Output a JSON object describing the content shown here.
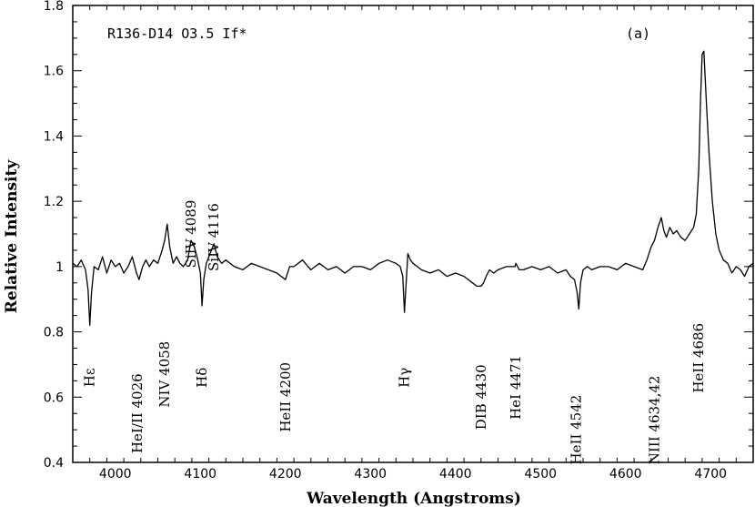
{
  "chart_data": {
    "type": "line",
    "title": "R136-D14 O3.5 If*",
    "panel_label": "(a)",
    "xlabel": "Wavelength (Angstroms)",
    "ylabel": "Relative Intensity",
    "xlim": [
      3950,
      4750
    ],
    "ylim": [
      0.4,
      1.8
    ],
    "x_ticks": [
      4000,
      4100,
      4200,
      4300,
      4400,
      4500,
      4600,
      4700
    ],
    "y_ticks": [
      0.4,
      0.6,
      0.8,
      1,
      1.2,
      1.4,
      1.6,
      1.8
    ],
    "y_tick_labels": [
      "0.4",
      "0.6",
      "0.8",
      "1",
      "1.2",
      "1.4",
      "1.6",
      "1.8"
    ],
    "grid": false,
    "series": [
      {
        "x": [
          3950,
          3955,
          3960,
          3965,
          3968,
          3970,
          3972,
          3975,
          3980,
          3985,
          3990,
          3995,
          4000,
          4005,
          4010,
          4015,
          4020,
          4025,
          4028,
          4032,
          4036,
          4040,
          4045,
          4050,
          4055,
          4058,
          4061,
          4064,
          4068,
          4072,
          4076,
          4080,
          4085,
          4089,
          4093,
          4097,
          4100,
          4102,
          4104,
          4107,
          4110,
          4113,
          4116,
          4120,
          4125,
          4130,
          4140,
          4150,
          4160,
          4170,
          4180,
          4190,
          4200,
          4205,
          4210,
          4220,
          4230,
          4240,
          4250,
          4260,
          4270,
          4280,
          4290,
          4300,
          4310,
          4320,
          4330,
          4335,
          4338,
          4340,
          4342,
          4344,
          4347,
          4350,
          4355,
          4360,
          4370,
          4380,
          4390,
          4400,
          4410,
          4420,
          4425,
          4430,
          4433,
          4436,
          4440,
          4445,
          4450,
          4460,
          4470,
          4471,
          4475,
          4480,
          4490,
          4500,
          4510,
          4520,
          4530,
          4535,
          4540,
          4543,
          4545,
          4547,
          4550,
          4555,
          4560,
          4570,
          4580,
          4590,
          4600,
          4610,
          4620,
          4625,
          4630,
          4634,
          4638,
          4642,
          4645,
          4648,
          4652,
          4656,
          4660,
          4665,
          4670,
          4675,
          4680,
          4683,
          4686,
          4688,
          4690,
          4692,
          4695,
          4698,
          4702,
          4706,
          4710,
          4715,
          4720,
          4725,
          4730,
          4735,
          4740,
          4745,
          4750
        ],
        "values": [
          1.01,
          1.0,
          1.02,
          0.99,
          0.93,
          0.82,
          0.92,
          1.0,
          0.99,
          1.03,
          0.98,
          1.02,
          1.0,
          1.01,
          0.98,
          1.0,
          1.03,
          0.98,
          0.96,
          1.0,
          1.02,
          1.0,
          1.02,
          1.01,
          1.05,
          1.08,
          1.13,
          1.06,
          1.01,
          1.03,
          1.01,
          1.0,
          1.02,
          1.08,
          1.06,
          1.02,
          0.98,
          0.88,
          0.96,
          1.01,
          1.03,
          1.05,
          1.07,
          1.03,
          1.01,
          1.02,
          1.0,
          0.99,
          1.01,
          1.0,
          0.99,
          0.98,
          0.96,
          1.0,
          1.0,
          1.02,
          0.99,
          1.01,
          0.99,
          1.0,
          0.98,
          1.0,
          1.0,
          0.99,
          1.01,
          1.02,
          1.01,
          1.0,
          0.97,
          0.86,
          0.95,
          1.04,
          1.02,
          1.01,
          1.0,
          0.99,
          0.98,
          0.99,
          0.97,
          0.98,
          0.97,
          0.95,
          0.94,
          0.94,
          0.95,
          0.97,
          0.99,
          0.98,
          0.99,
          1.0,
          1.0,
          1.01,
          0.99,
          0.99,
          1.0,
          0.99,
          1.0,
          0.98,
          0.99,
          0.97,
          0.96,
          0.92,
          0.87,
          0.95,
          0.99,
          1.0,
          0.99,
          1.0,
          1.0,
          0.99,
          1.01,
          1.0,
          0.99,
          1.02,
          1.06,
          1.08,
          1.12,
          1.15,
          1.11,
          1.09,
          1.12,
          1.1,
          1.11,
          1.09,
          1.08,
          1.1,
          1.12,
          1.16,
          1.3,
          1.5,
          1.65,
          1.66,
          1.5,
          1.35,
          1.2,
          1.1,
          1.05,
          1.02,
          1.01,
          0.98,
          1.0,
          0.99,
          0.97,
          1.0,
          1.01
        ]
      }
    ],
    "annotations": [
      {
        "text": "Hε",
        "x": 3970,
        "y": 0.66,
        "rotation": 270
      },
      {
        "text": "HeI/II 4026",
        "x": 4026,
        "y": 0.55,
        "rotation": 270
      },
      {
        "text": "NIV 4058",
        "x": 4058,
        "y": 0.67,
        "rotation": 270
      },
      {
        "text": "SiIV 4089",
        "x": 4089,
        "y": 1.1,
        "rotation": 270
      },
      {
        "text": "Hδ",
        "x": 4102,
        "y": 0.66,
        "rotation": 270
      },
      {
        "text": "SiIV 4116",
        "x": 4116,
        "y": 1.09,
        "rotation": 270
      },
      {
        "text": "HeII 4200",
        "x": 4200,
        "y": 0.6,
        "rotation": 270
      },
      {
        "text": "Hγ",
        "x": 4340,
        "y": 0.66,
        "rotation": 270
      },
      {
        "text": "DIB 4430",
        "x": 4430,
        "y": 0.6,
        "rotation": 270
      },
      {
        "text": "HeI 4471",
        "x": 4471,
        "y": 0.63,
        "rotation": 270
      },
      {
        "text": "HeII 4542",
        "x": 4542,
        "y": 0.5,
        "rotation": 270
      },
      {
        "text": "NIII 4634,42",
        "x": 4634,
        "y": 0.53,
        "rotation": 270
      },
      {
        "text": "HeII 4686",
        "x": 4686,
        "y": 0.72,
        "rotation": 270
      }
    ]
  }
}
